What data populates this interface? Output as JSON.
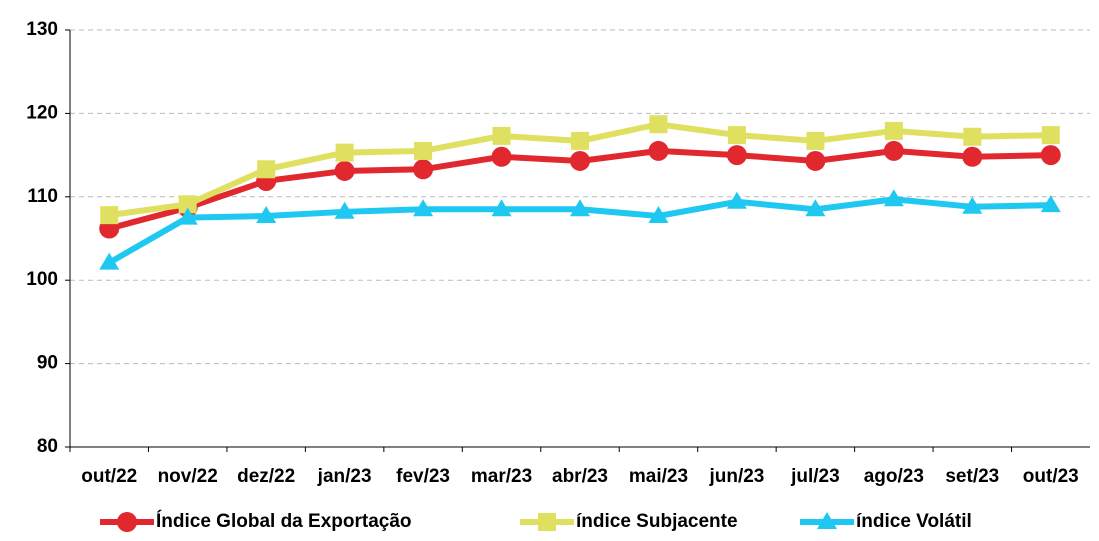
{
  "chart_data": {
    "type": "line",
    "categories": [
      "out/22",
      "nov/22",
      "dez/22",
      "jan/23",
      "fev/23",
      "mar/23",
      "abr/23",
      "mai/23",
      "jun/23",
      "jul/23",
      "ago/23",
      "set/23",
      "out/23"
    ],
    "series": [
      {
        "name": "Índice Global da Exportação",
        "color": "#e0282e",
        "marker": "circle",
        "values": [
          106.2,
          108.7,
          111.9,
          113.1,
          113.3,
          114.8,
          114.3,
          115.5,
          115.0,
          114.3,
          115.5,
          114.8,
          115.0
        ]
      },
      {
        "name": "índice Subjacente",
        "color": "#e0e060",
        "marker": "square",
        "values": [
          107.8,
          109.1,
          113.3,
          115.3,
          115.5,
          117.3,
          116.7,
          118.7,
          117.4,
          116.7,
          117.9,
          117.2,
          117.4
        ]
      },
      {
        "name": "índice Volátil",
        "color": "#1ec8f0",
        "marker": "triangle",
        "values": [
          102.1,
          107.5,
          107.7,
          108.2,
          108.5,
          108.5,
          108.5,
          107.7,
          109.4,
          108.5,
          109.7,
          108.8,
          109.0
        ]
      }
    ],
    "ylim": [
      80,
      130
    ],
    "yticks": [
      80,
      90,
      100,
      110,
      120,
      130
    ],
    "grid": true,
    "legend": "bottom"
  }
}
